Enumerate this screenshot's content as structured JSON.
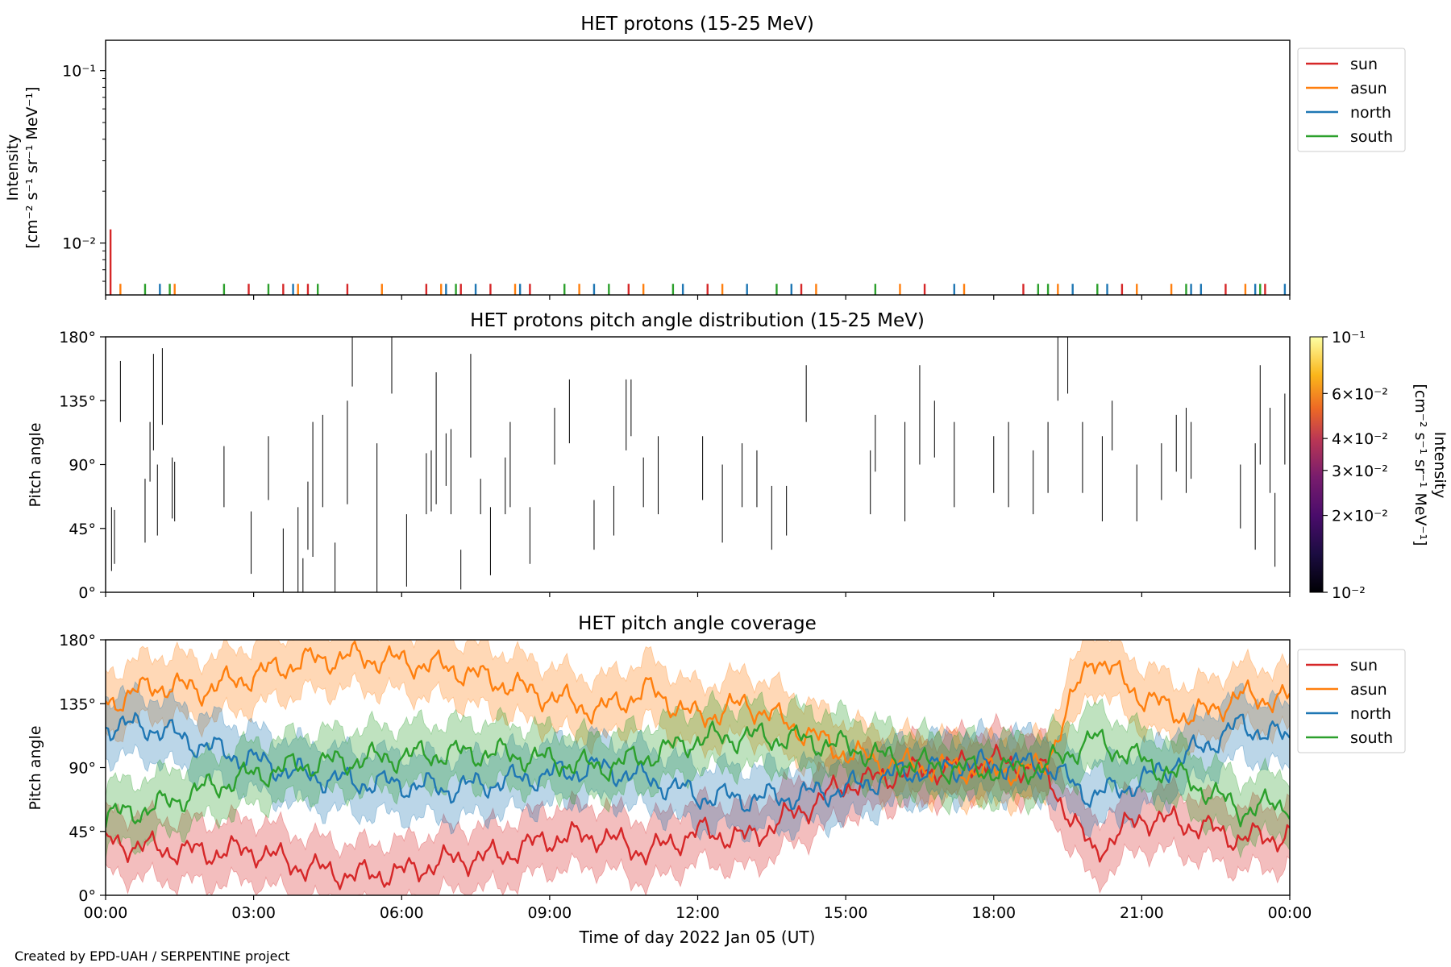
{
  "figure": {
    "footer": "Created by EPD-UAH / SERPENTINE project",
    "xlabel": "Time of day 2022 Jan 05 (UT)",
    "x_ticks": [
      "00:00",
      "03:00",
      "06:00",
      "09:00",
      "12:00",
      "15:00",
      "18:00",
      "21:00",
      "00:00"
    ]
  },
  "colors": {
    "sun": "#d62728",
    "asun": "#ff7f0e",
    "north": "#1f77b4",
    "south": "#2ca02c"
  },
  "chart_data": [
    {
      "id": "intensity",
      "type": "bar",
      "title": "HET protons (15-25 MeV)",
      "ylabel": [
        "Intensity",
        "[cm⁻² s⁻¹ sr⁻¹ MeV⁻¹]"
      ],
      "yscale": "log",
      "ylim": [
        0.005,
        0.15
      ],
      "ytick_labels": [
        "10⁻²",
        "10⁻¹"
      ],
      "xlim_hours": [
        0,
        24
      ],
      "legend": {
        "position": "outside-right",
        "entries": [
          "sun",
          "asun",
          "north",
          "south"
        ]
      },
      "series": [
        {
          "name": "sun",
          "x_hours": [
            0.1,
            2.9,
            3.6,
            4.1,
            4.9,
            6.5,
            7.2,
            7.8,
            8.6,
            10.6,
            12.2,
            14.1,
            16.6,
            18.6,
            20.6,
            22.7,
            23.5
          ],
          "values": [
            0.012,
            0.0058,
            0.0058,
            0.0058,
            0.0058,
            0.0058,
            0.0058,
            0.0058,
            0.0058,
            0.0058,
            0.0058,
            0.0058,
            0.0058,
            0.0058,
            0.0058,
            0.0058,
            0.0058
          ]
        },
        {
          "name": "asun",
          "x_hours": [
            0.3,
            1.4,
            3.9,
            5.6,
            6.8,
            8.3,
            9.6,
            10.9,
            12.5,
            14.4,
            16.1,
            17.4,
            19.3,
            20.9,
            21.6,
            23.1
          ],
          "values": [
            0.0058,
            0.0058,
            0.0058,
            0.0058,
            0.0058,
            0.0058,
            0.0058,
            0.0058,
            0.0058,
            0.0058,
            0.0058,
            0.0058,
            0.0058,
            0.0058,
            0.0058,
            0.0058
          ]
        },
        {
          "name": "north",
          "x_hours": [
            1.1,
            3.8,
            6.9,
            7.5,
            8.4,
            9.9,
            11.7,
            13.0,
            13.9,
            17.2,
            19.6,
            20.3,
            22.0,
            22.2,
            23.3,
            23.9
          ],
          "values": [
            0.0058,
            0.0058,
            0.0058,
            0.0058,
            0.0058,
            0.0058,
            0.0058,
            0.0058,
            0.0058,
            0.0058,
            0.0058,
            0.0058,
            0.0058,
            0.0058,
            0.0058,
            0.0058
          ]
        },
        {
          "name": "south",
          "x_hours": [
            0.8,
            1.3,
            2.4,
            3.3,
            4.3,
            7.1,
            9.3,
            10.2,
            11.5,
            13.6,
            15.6,
            18.9,
            19.1,
            20.1,
            21.9,
            23.4
          ],
          "values": [
            0.0058,
            0.0058,
            0.0058,
            0.0058,
            0.0058,
            0.0058,
            0.0058,
            0.0058,
            0.0058,
            0.0058,
            0.0058,
            0.0058,
            0.0058,
            0.0058,
            0.0058,
            0.0058
          ]
        }
      ]
    },
    {
      "id": "pad",
      "type": "heatmap",
      "title": "HET protons pitch angle distribution (15-25 MeV)",
      "ylabel": "Pitch angle",
      "ylim": [
        0,
        180
      ],
      "ytick_labels": [
        "0°",
        "45°",
        "90°",
        "135°",
        "180°"
      ],
      "ytick_values": [
        0,
        45,
        90,
        135,
        180
      ],
      "xlim_hours": [
        0,
        24
      ],
      "colorbar": {
        "label": [
          "Intensity",
          "[cm⁻² s⁻¹ sr⁻¹ MeV⁻¹]"
        ],
        "scale": "log",
        "range": [
          0.01,
          0.1
        ],
        "cmap": "inferno",
        "tick_values": [
          0.01,
          0.02,
          0.03,
          0.04,
          0.06,
          0.1
        ],
        "tick_labels": [
          "10⁻²",
          "2×10⁻²",
          "3×10⁻²",
          "4×10⁻²",
          "6×10⁻²",
          "10⁻¹"
        ]
      },
      "segments_hours_deg": [
        [
          0.12,
          15,
          60
        ],
        [
          0.18,
          20,
          58
        ],
        [
          0.3,
          120,
          163
        ],
        [
          0.8,
          35,
          80
        ],
        [
          0.9,
          78,
          120
        ],
        [
          0.97,
          100,
          168
        ],
        [
          1.05,
          40,
          90
        ],
        [
          1.15,
          118,
          172
        ],
        [
          1.35,
          52,
          95
        ],
        [
          1.4,
          50,
          92
        ],
        [
          2.4,
          60,
          103
        ],
        [
          2.95,
          13,
          57
        ],
        [
          3.3,
          65,
          110
        ],
        [
          3.6,
          0,
          45
        ],
        [
          3.9,
          0,
          60
        ],
        [
          4.0,
          0,
          24
        ],
        [
          4.1,
          30,
          78
        ],
        [
          4.2,
          25,
          120
        ],
        [
          4.4,
          60,
          125
        ],
        [
          4.65,
          0,
          35
        ],
        [
          4.9,
          62,
          135
        ],
        [
          5.0,
          145,
          180
        ],
        [
          5.5,
          0,
          105
        ],
        [
          5.8,
          140,
          180
        ],
        [
          6.1,
          4,
          55
        ],
        [
          6.5,
          55,
          98
        ],
        [
          6.6,
          57,
          100
        ],
        [
          6.7,
          62,
          155
        ],
        [
          6.9,
          75,
          112
        ],
        [
          7.0,
          55,
          115
        ],
        [
          7.2,
          2,
          30
        ],
        [
          7.4,
          95,
          168
        ],
        [
          7.6,
          55,
          80
        ],
        [
          7.8,
          12,
          60
        ],
        [
          8.1,
          55,
          95
        ],
        [
          8.2,
          60,
          120
        ],
        [
          8.6,
          20,
          60
        ],
        [
          9.1,
          90,
          130
        ],
        [
          9.4,
          105,
          150
        ],
        [
          9.9,
          30,
          65
        ],
        [
          10.3,
          40,
          75
        ],
        [
          10.55,
          100,
          150
        ],
        [
          10.65,
          110,
          150
        ],
        [
          10.9,
          60,
          95
        ],
        [
          11.2,
          55,
          110
        ],
        [
          12.1,
          65,
          110
        ],
        [
          12.5,
          35,
          90
        ],
        [
          12.9,
          60,
          105
        ],
        [
          13.2,
          60,
          100
        ],
        [
          13.5,
          30,
          75
        ],
        [
          13.8,
          40,
          75
        ],
        [
          14.2,
          120,
          160
        ],
        [
          15.5,
          55,
          100
        ],
        [
          15.6,
          85,
          125
        ],
        [
          16.2,
          50,
          120
        ],
        [
          16.5,
          90,
          160
        ],
        [
          16.8,
          95,
          135
        ],
        [
          17.2,
          60,
          120
        ],
        [
          18.0,
          70,
          110
        ],
        [
          18.3,
          60,
          120
        ],
        [
          18.8,
          55,
          100
        ],
        [
          19.1,
          70,
          120
        ],
        [
          19.3,
          135,
          180
        ],
        [
          19.5,
          140,
          180
        ],
        [
          19.8,
          70,
          120
        ],
        [
          20.2,
          50,
          110
        ],
        [
          20.4,
          100,
          135
        ],
        [
          20.9,
          50,
          90
        ],
        [
          21.4,
          65,
          105
        ],
        [
          21.7,
          85,
          125
        ],
        [
          21.9,
          70,
          130
        ],
        [
          22.0,
          80,
          120
        ],
        [
          23.0,
          45,
          90
        ],
        [
          23.3,
          30,
          105
        ],
        [
          23.4,
          90,
          160
        ],
        [
          23.6,
          70,
          130
        ],
        [
          23.7,
          18,
          70
        ],
        [
          23.9,
          90,
          140
        ]
      ]
    },
    {
      "id": "coverage",
      "type": "line",
      "title": "HET pitch angle coverage",
      "ylabel": "Pitch angle",
      "ylim": [
        0,
        180
      ],
      "ytick_labels": [
        "0°",
        "45°",
        "90°",
        "135°",
        "180°"
      ],
      "ytick_values": [
        0,
        45,
        90,
        135,
        180
      ],
      "xlim_hours": [
        0,
        24
      ],
      "legend": {
        "position": "outside-right",
        "entries": [
          "sun",
          "asun",
          "north",
          "south"
        ]
      },
      "band_halfwidth_deg": 22,
      "series": [
        {
          "name": "sun",
          "x_hours": [
            0,
            1,
            2,
            3,
            4,
            5,
            6,
            7,
            8,
            9,
            10,
            11,
            12,
            13,
            14,
            15,
            16,
            17,
            18,
            19,
            20,
            21,
            22,
            23,
            24
          ],
          "values": [
            38,
            33,
            30,
            32,
            20,
            14,
            16,
            25,
            28,
            40,
            42,
            30,
            45,
            40,
            58,
            78,
            85,
            90,
            95,
            88,
            30,
            55,
            50,
            40,
            42
          ]
        },
        {
          "name": "asun",
          "x_hours": [
            0,
            1,
            2,
            3,
            4,
            5,
            6,
            7,
            8,
            9,
            10,
            11,
            12,
            13,
            14,
            15,
            16,
            17,
            18,
            19,
            20,
            21,
            22,
            23,
            24
          ],
          "values": [
            135,
            148,
            145,
            155,
            165,
            168,
            165,
            160,
            150,
            140,
            130,
            145,
            125,
            135,
            118,
            100,
            92,
            90,
            87,
            90,
            170,
            140,
            125,
            140,
            138
          ]
        },
        {
          "name": "north",
          "x_hours": [
            0,
            1,
            2,
            3,
            4,
            5,
            6,
            7,
            8,
            9,
            10,
            11,
            12,
            13,
            14,
            15,
            16,
            17,
            18,
            19,
            20,
            21,
            22,
            23,
            24
          ],
          "values": [
            120,
            118,
            105,
            95,
            85,
            80,
            78,
            75,
            80,
            85,
            90,
            82,
            70,
            68,
            70,
            75,
            85,
            90,
            92,
            92,
            70,
            80,
            100,
            120,
            110
          ]
        },
        {
          "name": "south",
          "x_hours": [
            0,
            1,
            2,
            3,
            4,
            5,
            6,
            7,
            8,
            9,
            10,
            11,
            12,
            13,
            14,
            15,
            16,
            17,
            18,
            19,
            20,
            21,
            22,
            23,
            24
          ],
          "values": [
            55,
            62,
            75,
            85,
            92,
            95,
            98,
            100,
            100,
            95,
            90,
            98,
            110,
            112,
            110,
            105,
            95,
            90,
            88,
            90,
            110,
            95,
            80,
            60,
            65
          ]
        }
      ]
    }
  ]
}
